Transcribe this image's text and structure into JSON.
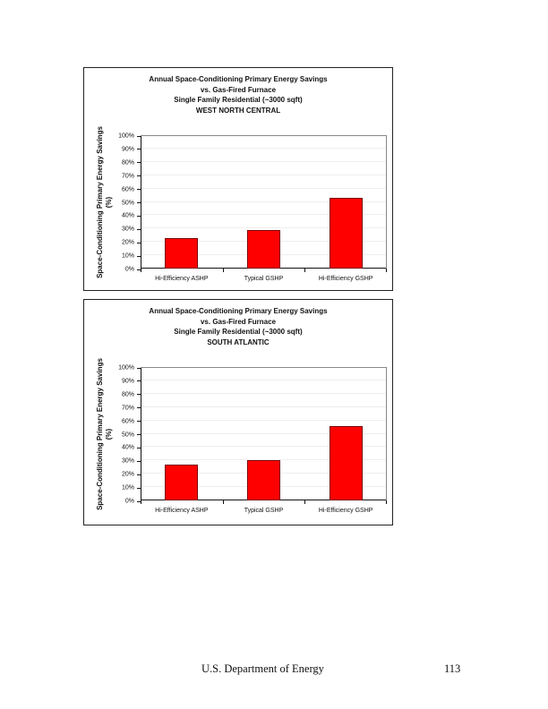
{
  "chart_data": [
    {
      "type": "bar",
      "title": "Annual Space-Conditioning Primary Energy Savings vs. Gas-Fired Furnace Single Family Residential (~3000 sqft) WEST NORTH CENTRAL",
      "title_lines": [
        "Annual Space-Conditioning Primary Energy Savings",
        "vs. Gas-Fired Furnace",
        "Single Family Residential (~3000 sqft)",
        "WEST NORTH CENTRAL"
      ],
      "xlabel": "",
      "ylabel": "Space-Conditioning Primary Energy Savings (%)",
      "ylabel_lines": [
        "Space-Conditioning Primary Energy Savings",
        "(%)"
      ],
      "categories": [
        "Hi-Efficiency ASHP",
        "Typical GSHP",
        "Hi-Efficiency GSHP"
      ],
      "values": [
        23,
        29,
        53
      ],
      "ylim": [
        0,
        100
      ],
      "yticks": [
        "0%",
        "10%",
        "20%",
        "30%",
        "40%",
        "50%",
        "60%",
        "70%",
        "80%",
        "90%",
        "100%"
      ],
      "grid": true,
      "legend": "none",
      "bar_color": "#ff0000"
    },
    {
      "type": "bar",
      "title": "Annual Space-Conditioning Primary Energy Savings vs. Gas-Fired Furnace Single Family Residential (~3000 sqft) SOUTH ATLANTIC",
      "title_lines": [
        "Annual Space-Conditioning Primary Energy Savings",
        "vs. Gas-Fired Furnace",
        "Single Family Residential (~3000 sqft)",
        "SOUTH ATLANTIC"
      ],
      "xlabel": "",
      "ylabel": "Space-Conditioning Primary Energy Savings (%)",
      "ylabel_lines": [
        "Space-Conditioning Primary Energy Savings",
        "(%)"
      ],
      "categories": [
        "Hi-Efficiency ASHP",
        "Typical GSHP",
        "Hi-Efficiency GSHP"
      ],
      "values": [
        27,
        30,
        56
      ],
      "ylim": [
        0,
        100
      ],
      "yticks": [
        "0%",
        "10%",
        "20%",
        "30%",
        "40%",
        "50%",
        "60%",
        "70%",
        "80%",
        "90%",
        "100%"
      ],
      "grid": true,
      "legend": "none",
      "bar_color": "#ff0000"
    }
  ],
  "footer": {
    "organization": "U.S. Department of Energy",
    "page_number": "113"
  }
}
